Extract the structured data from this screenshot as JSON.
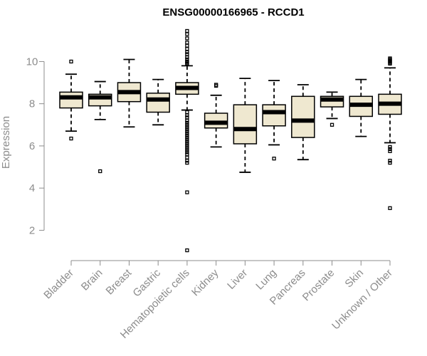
{
  "chart_data": {
    "type": "box",
    "title": "ENSG00000166965 - RCCD1",
    "ylabel": "Expression",
    "xlabel": "",
    "ylim": [
      0.9,
      11.5
    ],
    "yticks": [
      2,
      4,
      6,
      8,
      10
    ],
    "box_color": "#efe8d0",
    "categories": [
      "Bladder",
      "Brain",
      "Breast",
      "Gastric",
      "Hematopoietic cells",
      "Kidney",
      "Liver",
      "Lung",
      "Pancreas",
      "Prostate",
      "Skin",
      "Unknown / Other"
    ],
    "boxes": [
      {
        "min": 6.7,
        "q1": 7.8,
        "median": 8.3,
        "q3": 8.55,
        "max": 9.4,
        "outliers": [
          10.0,
          6.35
        ]
      },
      {
        "min": 7.25,
        "q1": 7.9,
        "median": 8.3,
        "q3": 8.45,
        "max": 9.05,
        "outliers": [
          4.8
        ]
      },
      {
        "min": 6.9,
        "q1": 8.1,
        "median": 8.55,
        "q3": 9.0,
        "max": 10.1,
        "outliers": []
      },
      {
        "min": 7.0,
        "q1": 7.6,
        "median": 8.2,
        "q3": 8.5,
        "max": 9.15,
        "outliers": []
      },
      {
        "min": 7.7,
        "q1": 8.45,
        "median": 8.75,
        "q3": 9.0,
        "max": 9.8,
        "outliers": [
          11.45,
          11.3,
          11.1,
          10.9,
          10.75,
          10.6,
          10.45,
          10.35,
          10.2,
          10.1,
          10.0,
          9.95,
          9.9,
          7.6,
          7.45,
          7.35,
          7.2,
          7.1,
          7.0,
          6.9,
          6.8,
          6.7,
          6.6,
          6.5,
          6.4,
          6.3,
          6.2,
          6.1,
          6.0,
          5.9,
          5.8,
          5.7,
          5.6,
          5.45,
          5.3,
          5.2,
          3.8,
          1.05
        ]
      },
      {
        "min": 5.95,
        "q1": 6.85,
        "median": 7.1,
        "q3": 7.55,
        "max": 8.4,
        "outliers": [
          8.9,
          8.85
        ]
      },
      {
        "min": 4.75,
        "q1": 6.1,
        "median": 6.8,
        "q3": 7.95,
        "max": 9.2,
        "outliers": []
      },
      {
        "min": 6.05,
        "q1": 6.95,
        "median": 7.6,
        "q3": 7.95,
        "max": 9.1,
        "outliers": [
          5.4
        ]
      },
      {
        "min": 5.35,
        "q1": 6.4,
        "median": 7.2,
        "q3": 8.35,
        "max": 8.9,
        "outliers": []
      },
      {
        "min": 7.3,
        "q1": 7.85,
        "median": 8.2,
        "q3": 8.35,
        "max": 8.55,
        "outliers": [
          7.0
        ]
      },
      {
        "min": 6.45,
        "q1": 7.4,
        "median": 7.95,
        "q3": 8.35,
        "max": 9.15,
        "outliers": []
      },
      {
        "min": 6.15,
        "q1": 7.5,
        "median": 8.0,
        "q3": 8.45,
        "max": 9.7,
        "outliers": [
          10.15,
          10.1,
          10.05,
          10.0,
          9.95,
          9.9,
          5.95,
          5.85,
          5.75,
          5.3,
          5.2,
          3.05
        ]
      }
    ]
  }
}
